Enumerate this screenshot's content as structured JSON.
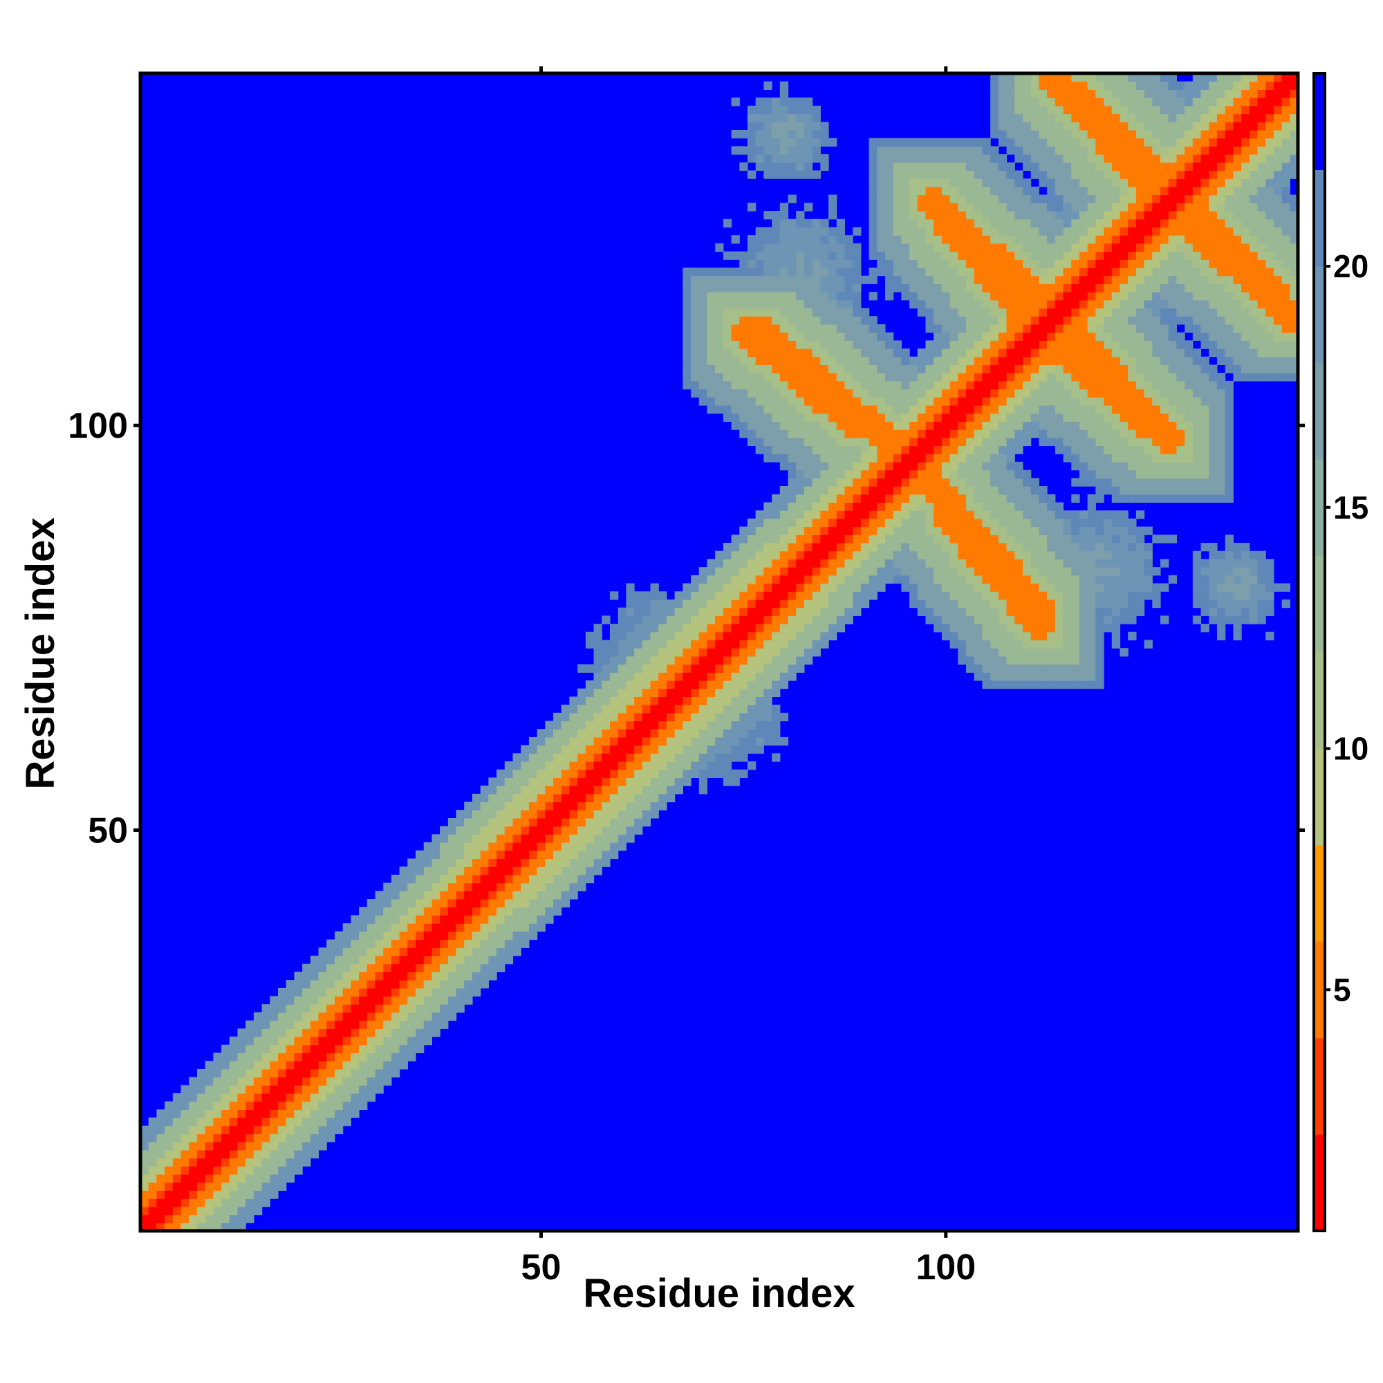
{
  "chart_data": {
    "type": "heatmap",
    "title": "",
    "xlabel": "Residue index",
    "ylabel": "Residue index",
    "n_residues": 143,
    "x_range": [
      1,
      143
    ],
    "y_range": [
      1,
      143
    ],
    "x_ticks": [
      50,
      100
    ],
    "y_ticks": [
      50,
      100
    ],
    "colorbar": {
      "range": [
        0,
        24
      ],
      "ticks": [
        5,
        10,
        15,
        20
      ],
      "levels": [
        {
          "max": 2,
          "color": "#ff0000"
        },
        {
          "max": 4,
          "color": "#ff3d00"
        },
        {
          "max": 6,
          "color": "#ff7a00"
        },
        {
          "max": 8,
          "color": "#ff9900"
        },
        {
          "max": 10,
          "color": "#b4c47e"
        },
        {
          "max": 12,
          "color": "#a7bf88"
        },
        {
          "max": 14,
          "color": "#9bb895"
        },
        {
          "max": 16,
          "color": "#8aaea0"
        },
        {
          "max": 18,
          "color": "#7c9fab"
        },
        {
          "max": 20,
          "color": "#6f95b5"
        },
        {
          "max": 22,
          "color": "#5f87b8"
        },
        {
          "max": 24,
          "color": "#0000ff"
        }
      ]
    },
    "background_color": "#0000ff",
    "description_values": {
      "diagonal_distance": 0,
      "contact_bands": [
        {
          "kind": "diagonal-helix",
          "from": 1,
          "to": 26,
          "halfwidth": 3,
          "distance": 6
        },
        {
          "kind": "diagonal-helix",
          "from": 28,
          "to": 45,
          "halfwidth": 3,
          "distance": 6
        },
        {
          "kind": "diagonal-helix",
          "from": 48,
          "to": 78,
          "halfwidth": 4,
          "distance": 6
        },
        {
          "kind": "antiparallel",
          "i_from": 75,
          "i_to": 89,
          "j_from": 112,
          "j_to": 100,
          "distance": 6
        },
        {
          "kind": "antiparallel",
          "i_from": 98,
          "i_to": 112,
          "j_from": 93,
          "j_to": 77,
          "distance": 6
        },
        {
          "kind": "antiparallel",
          "i_from": 112,
          "i_to": 128,
          "j_from": 111,
          "j_to": 98,
          "distance": 6
        },
        {
          "kind": "antiparallel",
          "i_from": 98,
          "i_to": 113,
          "j_from": 128,
          "j_to": 114,
          "distance": 6
        },
        {
          "kind": "antiparallel",
          "i_from": 116,
          "i_to": 128,
          "j_from": 141,
          "j_to": 129,
          "distance": 6
        },
        {
          "kind": "antiparallel",
          "i_from": 128,
          "i_to": 143,
          "j_from": 127,
          "j_to": 113,
          "distance": 6
        }
      ],
      "diffuse_patches": [
        {
          "center": [
            82,
            118
          ],
          "spread": 8,
          "distance": 16
        },
        {
          "center": [
            65,
            72
          ],
          "spread": 7,
          "distance": 16
        },
        {
          "center": [
            110,
            78
          ],
          "spread": 6,
          "distance": 16
        },
        {
          "center": [
            136,
            80
          ],
          "spread": 5,
          "distance": 16
        }
      ]
    }
  }
}
